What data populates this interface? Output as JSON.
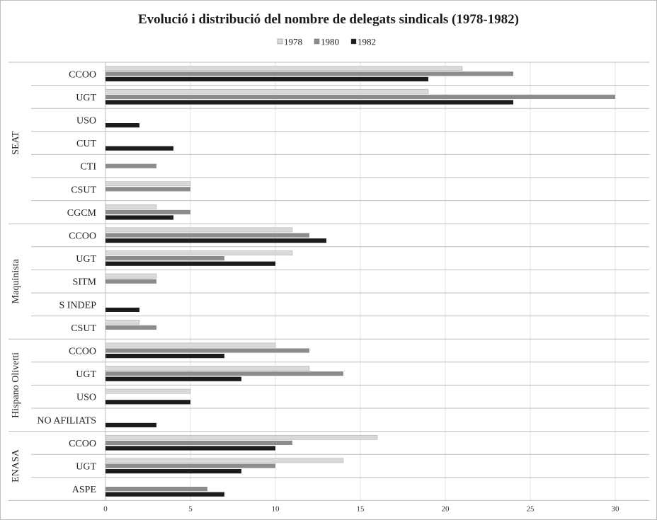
{
  "chart_data": {
    "type": "bar",
    "orientation": "horizontal",
    "title": "Evolució i distribució del nombre de delegats sindicals (1978-1982)",
    "legend": {
      "placement": "top-center",
      "entries": [
        "1978",
        "1980",
        "1982"
      ]
    },
    "xlim": [
      0,
      30
    ],
    "xticks": [
      "0",
      "5",
      "10",
      "15",
      "20",
      "25",
      "30"
    ],
    "grid": true,
    "colors": {
      "1978": "#d9d9d9",
      "1980": "#8c8c8c",
      "1982": "#1c1c1c"
    },
    "groups": [
      {
        "name": "SEAT",
        "rows": [
          {
            "label": "CCOO",
            "values": [
              21,
              24,
              19
            ]
          },
          {
            "label": "UGT",
            "values": [
              19,
              30,
              24
            ]
          },
          {
            "label": "USO",
            "values": [
              0,
              0,
              2
            ]
          },
          {
            "label": "CUT",
            "values": [
              0,
              0,
              4
            ]
          },
          {
            "label": "CTI",
            "values": [
              0,
              3,
              0
            ]
          },
          {
            "label": "CSUT",
            "values": [
              5,
              5,
              0
            ]
          },
          {
            "label": "CGCM",
            "values": [
              3,
              5,
              4
            ]
          }
        ]
      },
      {
        "name": "Maquinista",
        "rows": [
          {
            "label": "CCOO",
            "values": [
              11,
              12,
              13
            ]
          },
          {
            "label": "UGT",
            "values": [
              11,
              7,
              10
            ]
          },
          {
            "label": "SITM",
            "values": [
              3,
              3,
              0
            ]
          },
          {
            "label": "S INDEP",
            "values": [
              0,
              0,
              2
            ]
          },
          {
            "label": "CSUT",
            "values": [
              2,
              3,
              0
            ]
          }
        ]
      },
      {
        "name": "Hispano Olivetti",
        "rows": [
          {
            "label": "CCOO",
            "values": [
              10,
              12,
              7
            ]
          },
          {
            "label": "UGT",
            "values": [
              12,
              14,
              8
            ]
          },
          {
            "label": "USO",
            "values": [
              5,
              0,
              5
            ]
          },
          {
            "label": "NO AFILIATS",
            "values": [
              0,
              0,
              3
            ]
          }
        ]
      },
      {
        "name": "ENASA",
        "rows": [
          {
            "label": "CCOO",
            "values": [
              16,
              11,
              10
            ]
          },
          {
            "label": "UGT",
            "values": [
              14,
              10,
              8
            ]
          },
          {
            "label": "ASPE",
            "values": [
              0,
              6,
              7
            ]
          }
        ]
      }
    ]
  }
}
